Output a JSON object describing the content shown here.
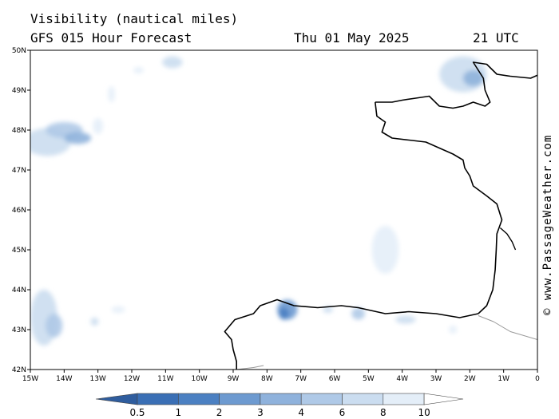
{
  "header": {
    "title": "Visibility (nautical miles)",
    "model": "GFS 015 Hour Forecast",
    "date": "Thu 01 May 2025",
    "time": "21 UTC"
  },
  "credit": "© www.PassageWeather.com",
  "map": {
    "lon_range": [
      -15,
      0
    ],
    "lat_range": [
      42,
      50
    ],
    "lon_ticks": [
      "15W",
      "14W",
      "13W",
      "12W",
      "11W",
      "10W",
      "9W",
      "8W",
      "7W",
      "6W",
      "5W",
      "4W",
      "3W",
      "2W",
      "1W",
      "0"
    ],
    "lat_ticks": [
      "42N",
      "43N",
      "44N",
      "45N",
      "46N",
      "47N",
      "48N",
      "49N",
      "50N"
    ]
  },
  "colorbar": {
    "labels": [
      "0.5",
      "1",
      "2",
      "3",
      "4",
      "6",
      "8",
      "10"
    ],
    "colors": [
      "#3a6fb5",
      "#4b80c2",
      "#6d9ad0",
      "#8fb2dc",
      "#afc9e7",
      "#cbddf0",
      "#e4eef8",
      "#ffffff"
    ]
  },
  "fog_patches": [
    {
      "lon": -14.5,
      "lat": 47.7,
      "rlon": 0.7,
      "rlat": 0.35,
      "level": 5
    },
    {
      "lon": -14.0,
      "lat": 48.0,
      "rlon": 0.55,
      "rlat": 0.2,
      "level": 4
    },
    {
      "lon": -13.6,
      "lat": 47.8,
      "rlon": 0.4,
      "rlat": 0.15,
      "level": 3
    },
    {
      "lon": -13.0,
      "lat": 48.1,
      "rlon": 0.15,
      "rlat": 0.2,
      "level": 6
    },
    {
      "lon": -12.6,
      "lat": 48.9,
      "rlon": 0.1,
      "rlat": 0.2,
      "level": 6
    },
    {
      "lon": -11.8,
      "lat": 49.5,
      "rlon": 0.15,
      "rlat": 0.08,
      "level": 6
    },
    {
      "lon": -10.8,
      "lat": 49.7,
      "rlon": 0.3,
      "rlat": 0.15,
      "level": 5
    },
    {
      "lon": -2.2,
      "lat": 49.4,
      "rlon": 0.7,
      "rlat": 0.45,
      "level": 5
    },
    {
      "lon": -1.9,
      "lat": 49.3,
      "rlon": 0.3,
      "rlat": 0.2,
      "level": 3
    },
    {
      "lon": -14.6,
      "lat": 43.3,
      "rlon": 0.4,
      "rlat": 0.7,
      "level": 5
    },
    {
      "lon": -14.3,
      "lat": 43.1,
      "rlon": 0.25,
      "rlat": 0.3,
      "level": 4
    },
    {
      "lon": -13.1,
      "lat": 43.2,
      "rlon": 0.12,
      "rlat": 0.1,
      "level": 5
    },
    {
      "lon": -12.4,
      "lat": 43.5,
      "rlon": 0.2,
      "rlat": 0.08,
      "level": 6
    },
    {
      "lon": -4.5,
      "lat": 45.0,
      "rlon": 0.4,
      "rlat": 0.6,
      "level": 6
    },
    {
      "lon": -7.4,
      "lat": 43.5,
      "rlon": 0.3,
      "rlat": 0.25,
      "level": 2
    },
    {
      "lon": -7.5,
      "lat": 43.4,
      "rlon": 0.15,
      "rlat": 0.15,
      "level": 1
    },
    {
      "lon": -6.2,
      "lat": 43.5,
      "rlon": 0.15,
      "rlat": 0.08,
      "level": 5
    },
    {
      "lon": -5.3,
      "lat": 43.4,
      "rlon": 0.2,
      "rlat": 0.15,
      "level": 4
    },
    {
      "lon": -3.9,
      "lat": 43.25,
      "rlon": 0.3,
      "rlat": 0.1,
      "level": 5
    },
    {
      "lon": -2.5,
      "lat": 43.0,
      "rlon": 0.12,
      "rlat": 0.1,
      "level": 6
    }
  ],
  "coastlines": {
    "brittany": [
      [
        -4.8,
        48.7
      ],
      [
        -4.3,
        48.7
      ],
      [
        -4.0,
        48.75
      ],
      [
        -3.6,
        48.8
      ],
      [
        -3.2,
        48.85
      ],
      [
        -2.9,
        48.6
      ],
      [
        -2.5,
        48.55
      ],
      [
        -2.2,
        48.6
      ],
      [
        -1.9,
        48.7
      ],
      [
        -1.55,
        48.6
      ],
      [
        -1.4,
        48.7
      ],
      [
        -1.55,
        49.0
      ],
      [
        -1.6,
        49.3
      ],
      [
        -1.9,
        49.7
      ],
      [
        -1.5,
        49.65
      ],
      [
        -1.2,
        49.4
      ],
      [
        -0.8,
        49.35
      ],
      [
        -0.2,
        49.3
      ],
      [
        0.2,
        49.45
      ]
    ],
    "bay_of_biscay": [
      [
        -4.8,
        48.7
      ],
      [
        -4.75,
        48.35
      ],
      [
        -4.5,
        48.2
      ],
      [
        -4.6,
        47.95
      ],
      [
        -4.3,
        47.8
      ],
      [
        -3.8,
        47.75
      ],
      [
        -3.3,
        47.7
      ],
      [
        -2.9,
        47.55
      ],
      [
        -2.5,
        47.4
      ],
      [
        -2.2,
        47.25
      ],
      [
        -2.15,
        47.05
      ],
      [
        -2.0,
        46.85
      ],
      [
        -1.9,
        46.6
      ],
      [
        -1.5,
        46.35
      ],
      [
        -1.2,
        46.15
      ],
      [
        -1.05,
        45.75
      ],
      [
        -1.2,
        45.4
      ],
      [
        -1.22,
        45.0
      ],
      [
        -1.25,
        44.5
      ],
      [
        -1.32,
        44.0
      ],
      [
        -1.5,
        43.6
      ],
      [
        -1.75,
        43.4
      ]
    ],
    "gironde": [
      [
        -1.1,
        45.55
      ],
      [
        -0.9,
        45.4
      ],
      [
        -0.75,
        45.2
      ],
      [
        -0.65,
        45.0
      ]
    ],
    "iberia": [
      [
        -1.75,
        43.4
      ],
      [
        -2.3,
        43.3
      ],
      [
        -3.0,
        43.4
      ],
      [
        -3.8,
        43.45
      ],
      [
        -4.5,
        43.4
      ],
      [
        -5.3,
        43.55
      ],
      [
        -5.8,
        43.6
      ],
      [
        -6.5,
        43.55
      ],
      [
        -7.2,
        43.6
      ],
      [
        -7.7,
        43.75
      ],
      [
        -8.2,
        43.6
      ],
      [
        -8.4,
        43.4
      ],
      [
        -8.95,
        43.25
      ],
      [
        -9.25,
        42.95
      ],
      [
        -9.05,
        42.75
      ],
      [
        -9.0,
        42.5
      ],
      [
        -8.9,
        42.2
      ],
      [
        -8.9,
        42.0
      ]
    ],
    "borders": [
      [
        [
          -1.75,
          43.35
        ],
        [
          -1.3,
          43.2
        ],
        [
          -0.8,
          42.95
        ],
        [
          0.0,
          42.75
        ]
      ],
      [
        [
          -8.9,
          42.0
        ],
        [
          -8.4,
          42.05
        ],
        [
          -8.1,
          42.1
        ]
      ]
    ]
  }
}
